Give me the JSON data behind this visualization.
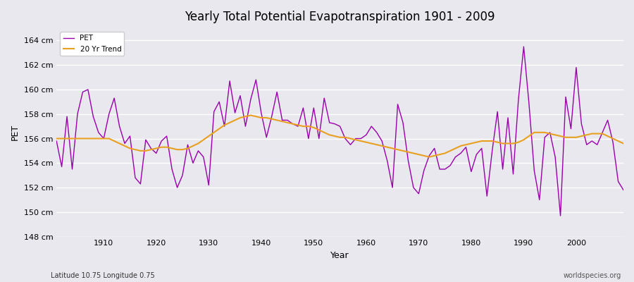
{
  "title": "Yearly Total Potential Evapotranspiration 1901 - 2009",
  "xlabel": "Year",
  "ylabel": "PET",
  "subtitle": "Latitude 10.75 Longitude 0.75",
  "watermark": "worldspecies.org",
  "pet_color": "#9900aa",
  "trend_color": "#e8a020",
  "background_color": "#e8e8ee",
  "grid_color": "#ffffff",
  "ylim": [
    148,
    165
  ],
  "yticks": [
    148,
    150,
    152,
    154,
    156,
    158,
    160,
    162,
    164
  ],
  "years": [
    1901,
    1902,
    1903,
    1904,
    1905,
    1906,
    1907,
    1908,
    1909,
    1910,
    1911,
    1912,
    1913,
    1914,
    1915,
    1916,
    1917,
    1918,
    1919,
    1920,
    1921,
    1922,
    1923,
    1924,
    1925,
    1926,
    1927,
    1928,
    1929,
    1930,
    1931,
    1932,
    1933,
    1934,
    1935,
    1936,
    1937,
    1938,
    1939,
    1940,
    1941,
    1942,
    1943,
    1944,
    1945,
    1946,
    1947,
    1948,
    1949,
    1950,
    1951,
    1952,
    1953,
    1954,
    1955,
    1956,
    1957,
    1958,
    1959,
    1960,
    1961,
    1962,
    1963,
    1964,
    1965,
    1966,
    1967,
    1968,
    1969,
    1970,
    1971,
    1972,
    1973,
    1974,
    1975,
    1976,
    1977,
    1978,
    1979,
    1980,
    1981,
    1982,
    1983,
    1984,
    1985,
    1986,
    1987,
    1988,
    1989,
    1990,
    1991,
    1992,
    1993,
    1994,
    1995,
    1996,
    1997,
    1998,
    1999,
    2000,
    2001,
    2002,
    2003,
    2004,
    2005,
    2006,
    2007,
    2008,
    2009
  ],
  "pet": [
    155.8,
    153.7,
    157.8,
    153.5,
    158.0,
    159.8,
    160.0,
    157.8,
    156.5,
    156.0,
    158.0,
    159.3,
    157.0,
    155.6,
    156.2,
    152.8,
    152.3,
    155.9,
    155.2,
    154.8,
    155.8,
    156.2,
    153.5,
    152.0,
    153.0,
    155.5,
    154.0,
    155.0,
    154.5,
    152.2,
    158.2,
    159.0,
    157.0,
    160.7,
    158.1,
    159.5,
    157.0,
    159.2,
    160.8,
    158.1,
    156.1,
    157.8,
    159.8,
    157.5,
    157.5,
    157.2,
    157.0,
    158.5,
    156.0,
    158.5,
    156.0,
    159.3,
    157.3,
    157.2,
    157.0,
    156.0,
    155.5,
    156.0,
    156.0,
    156.3,
    157.0,
    156.5,
    155.8,
    154.2,
    152.0,
    158.8,
    157.3,
    154.2,
    152.0,
    151.5,
    153.4,
    154.6,
    155.2,
    153.5,
    153.5,
    153.8,
    154.5,
    154.8,
    155.3,
    153.3,
    154.7,
    155.2,
    151.3,
    155.0,
    158.2,
    153.5,
    157.7,
    153.1,
    159.2,
    163.5,
    158.9,
    153.4,
    151.0,
    156.1,
    156.5,
    154.5,
    149.7,
    159.4,
    156.8,
    161.8,
    157.2,
    155.5,
    155.8,
    155.5,
    156.5,
    157.5,
    155.7,
    152.5,
    151.8
  ],
  "trend": [
    156.0,
    156.0,
    156.0,
    156.0,
    156.0,
    156.0,
    156.0,
    156.0,
    156.0,
    156.0,
    156.0,
    155.8,
    155.6,
    155.4,
    155.2,
    155.1,
    155.0,
    155.0,
    155.1,
    155.2,
    155.3,
    155.3,
    155.2,
    155.1,
    155.1,
    155.2,
    155.4,
    155.6,
    155.9,
    156.2,
    156.5,
    156.8,
    157.1,
    157.3,
    157.5,
    157.7,
    157.8,
    157.9,
    157.8,
    157.7,
    157.7,
    157.6,
    157.5,
    157.4,
    157.3,
    157.2,
    157.1,
    157.0,
    157.0,
    156.9,
    156.7,
    156.5,
    156.3,
    156.2,
    156.1,
    156.1,
    156.0,
    155.9,
    155.8,
    155.7,
    155.6,
    155.5,
    155.4,
    155.3,
    155.2,
    155.1,
    155.0,
    154.9,
    154.8,
    154.7,
    154.6,
    154.5,
    154.6,
    154.7,
    154.8,
    155.0,
    155.2,
    155.4,
    155.5,
    155.6,
    155.7,
    155.8,
    155.8,
    155.8,
    155.7,
    155.6,
    155.6,
    155.6,
    155.7,
    155.9,
    156.2,
    156.5,
    156.5,
    156.5,
    156.4,
    156.3,
    156.2,
    156.1,
    156.1,
    156.1,
    156.2,
    156.3,
    156.4,
    156.4,
    156.4,
    156.2,
    156.0,
    155.8,
    155.6
  ],
  "xticks": [
    1910,
    1920,
    1930,
    1940,
    1950,
    1960,
    1970,
    1980,
    1990,
    2000
  ]
}
